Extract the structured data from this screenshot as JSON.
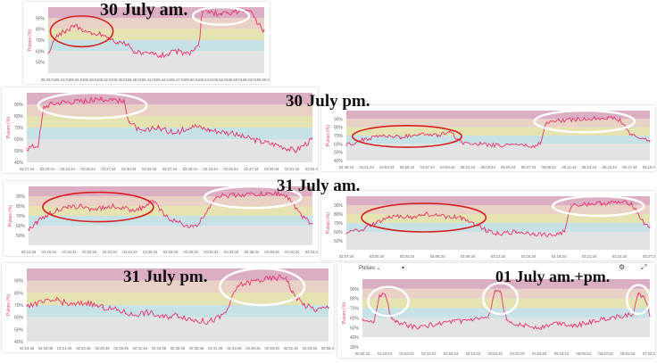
{
  "titles": {
    "p1": "30 July am.",
    "p2": "30 July pm.",
    "p4": "31 July am.",
    "p6": "31 July pm.",
    "p7": "01 July am.+pm."
  },
  "toolbar": {
    "series_select": "Pulses",
    "settings_icon": "gear-icon",
    "expand_icon": "expand-icon"
  },
  "bands": [
    {
      "from": 90,
      "to": 100,
      "color": "#dcaec4"
    },
    {
      "from": 80,
      "to": 90,
      "color": "#e9d1c5"
    },
    {
      "from": 70,
      "to": 80,
      "color": "#e6e3b2"
    },
    {
      "from": 60,
      "to": 70,
      "color": "#c6e2e6"
    },
    {
      "from": 40,
      "to": 60,
      "color": "#e3e3e3"
    }
  ],
  "chart_data": [
    {
      "id": "p1",
      "type": "line",
      "title": "30 July am.",
      "ylabel": "Pulses (%)",
      "ylim": [
        40,
        100
      ],
      "yticks": [
        "90%",
        "80%",
        "70%",
        "60%",
        "50%"
      ],
      "xticks": [
        "05:20:01",
        "05:23:01",
        "05:26:01",
        "05:29:01",
        "05:32:01",
        "05:35:01",
        "05:38:01",
        "05:41:01",
        "05:44:01",
        "05:47:01",
        "05:50:01",
        "05:53:01",
        "05:56:01",
        "05:59:01",
        "06:02:01",
        "06:05:01"
      ],
      "x": [
        0,
        0.04,
        0.08,
        0.12,
        0.16,
        0.2,
        0.24,
        0.28,
        0.32,
        0.36,
        0.4,
        0.44,
        0.48,
        0.52,
        0.56,
        0.6,
        0.64,
        0.68,
        0.7,
        0.71,
        0.74,
        0.8,
        0.86,
        0.9,
        0.92,
        0.94,
        0.96,
        1
      ],
      "y": [
        58,
        75,
        78,
        83,
        80,
        75,
        76,
        72,
        68,
        66,
        60,
        57,
        58,
        56,
        58,
        60,
        57,
        62,
        64,
        96,
        95,
        94,
        96,
        97,
        97,
        96,
        88,
        78
      ],
      "highlights": [
        {
          "shape": "ellipse",
          "color": "red",
          "x0": 0.01,
          "x1": 0.3,
          "y0": 64,
          "y1": 92
        },
        {
          "shape": "ellipse",
          "color": "white",
          "x0": 0.67,
          "x1": 0.93,
          "y0": 84,
          "y1": 102
        }
      ]
    },
    {
      "id": "p2",
      "type": "line",
      "title": "30 July pm.",
      "ylabel": "Pulses (%)",
      "ylim": [
        40,
        100
      ],
      "yticks": [
        "90%",
        "80%",
        "70%",
        "60%",
        "50%",
        "40%"
      ],
      "xticks": [
        "02:17:44",
        "02:20:44",
        "02:23:44",
        "02:25:44",
        "02:27:44",
        "02:30:44",
        "02:33:44",
        "02:37:44",
        "02:40:44",
        "02:43:44",
        "02:45:44",
        "02:47:44",
        "02:49:44",
        "02:51:44",
        "02:53:44"
      ],
      "x": [
        0,
        0.04,
        0.06,
        0.08,
        0.12,
        0.2,
        0.26,
        0.3,
        0.34,
        0.36,
        0.4,
        0.46,
        0.52,
        0.58,
        0.64,
        0.7,
        0.76,
        0.82,
        0.88,
        0.94,
        1
      ],
      "y": [
        52,
        55,
        88,
        90,
        92,
        93,
        94,
        95,
        92,
        75,
        66,
        70,
        65,
        72,
        68,
        66,
        62,
        58,
        55,
        50,
        60
      ],
      "highlights": [
        {
          "shape": "ellipse",
          "color": "white",
          "x0": 0.04,
          "x1": 0.42,
          "y0": 78,
          "y1": 100
        }
      ]
    },
    {
      "id": "p3",
      "type": "line",
      "title": "",
      "ylabel": "Pulses (%)",
      "ylim": [
        40,
        100
      ],
      "yticks": [
        "90%",
        "80%",
        "70%",
        "60%",
        "50%",
        "40%"
      ],
      "xticks": [
        "04:48:44",
        "04:51:44",
        "04:53:44",
        "04:55:44",
        "04:57:44",
        "04:59:44",
        "05:01:44",
        "05:03:44",
        "05:05:44",
        "05:07:44",
        "05:09:44",
        "05:11:44",
        "05:13:44",
        "05:15:44",
        "05:17:44",
        "05:19:44"
      ],
      "x": [
        0,
        0.06,
        0.12,
        0.18,
        0.24,
        0.3,
        0.34,
        0.38,
        0.44,
        0.5,
        0.56,
        0.62,
        0.64,
        0.66,
        0.7,
        0.76,
        0.82,
        0.86,
        0.9,
        0.94,
        1
      ],
      "y": [
        58,
        66,
        70,
        68,
        72,
        70,
        74,
        62,
        60,
        58,
        60,
        56,
        62,
        86,
        88,
        89,
        91,
        92,
        89,
        70,
        64
      ],
      "highlights": [
        {
          "shape": "ellipse",
          "color": "red",
          "x0": 0.02,
          "x1": 0.38,
          "y0": 56,
          "y1": 82
        },
        {
          "shape": "ellipse",
          "color": "white",
          "x0": 0.62,
          "x1": 0.95,
          "y0": 74,
          "y1": 100
        }
      ]
    },
    {
      "id": "p4",
      "type": "line",
      "title": "31 July am.",
      "ylabel": "Pulses (%)",
      "ylim": [
        40,
        100
      ],
      "yticks": [
        "90%",
        "80%",
        "70%",
        "60%",
        "50%"
      ],
      "xticks": [
        "04:14:34",
        "04:16:34",
        "04:18:34",
        "04:20:34",
        "04:22:34",
        "04:24:34",
        "04:26:34",
        "04:28:34",
        "04:30:34",
        "04:32:34",
        "04:34:34",
        "04:36:34",
        "04:38:34",
        "04:40:34",
        "04:42:34"
      ],
      "x": [
        0,
        0.03,
        0.06,
        0.1,
        0.14,
        0.18,
        0.22,
        0.26,
        0.3,
        0.36,
        0.4,
        0.44,
        0.48,
        0.52,
        0.56,
        0.58,
        0.6,
        0.66,
        0.72,
        0.78,
        0.84,
        0.88,
        0.92,
        0.96,
        1
      ],
      "y": [
        56,
        64,
        70,
        76,
        78,
        80,
        77,
        78,
        80,
        76,
        78,
        85,
        70,
        64,
        60,
        58,
        62,
        90,
        91,
        92,
        92,
        93,
        88,
        70,
        62
      ],
      "highlights": [
        {
          "shape": "ellipse",
          "color": "red",
          "x0": 0.05,
          "x1": 0.44,
          "y0": 64,
          "y1": 94
        },
        {
          "shape": "ellipse",
          "color": "white",
          "x0": 0.62,
          "x1": 0.96,
          "y0": 78,
          "y1": 102
        }
      ]
    },
    {
      "id": "p5",
      "type": "line",
      "title": "",
      "ylabel": "Pulses (%)",
      "ylim": [
        40,
        100
      ],
      "yticks": [
        "90%",
        "80%",
        "70%",
        "60%",
        "50%"
      ],
      "xticks": [
        "02:57:34",
        "03:00:34",
        "03:03:34",
        "03:06:34",
        "03:09:34",
        "03:12:34",
        "03:15:34",
        "03:18:34",
        "03:21:34",
        "03:24:34",
        "03:27:34"
      ],
      "x": [
        0,
        0.06,
        0.1,
        0.14,
        0.18,
        0.22,
        0.26,
        0.3,
        0.34,
        0.38,
        0.42,
        0.46,
        0.5,
        0.56,
        0.62,
        0.68,
        0.72,
        0.74,
        0.78,
        0.84,
        0.9,
        0.94,
        0.98,
        1
      ],
      "y": [
        58,
        64,
        70,
        76,
        78,
        76,
        80,
        78,
        77,
        76,
        70,
        62,
        58,
        60,
        58,
        56,
        60,
        90,
        91,
        92,
        93,
        92,
        70,
        66
      ],
      "highlights": [
        {
          "shape": "ellipse",
          "color": "red",
          "x0": 0.05,
          "x1": 0.46,
          "y0": 60,
          "y1": 92
        },
        {
          "shape": "ellipse",
          "color": "white",
          "x0": 0.68,
          "x1": 0.98,
          "y0": 78,
          "y1": 102
        }
      ]
    },
    {
      "id": "p6",
      "type": "line",
      "title": "31 July pm.",
      "ylabel": "Pulses (%)",
      "ylim": [
        40,
        100
      ],
      "yticks": [
        "90%",
        "80%",
        "70%",
        "60%",
        "50%",
        "40%"
      ],
      "xticks": [
        "02:16:46",
        "02:18:46",
        "02:21:46",
        "02:23:46",
        "02:26:46",
        "02:28:46",
        "02:31:46",
        "02:33:46",
        "02:36:46",
        "02:38:46",
        "02:41:46",
        "02:43:46",
        "02:46:46",
        "02:48:46",
        "02:51:46",
        "02:53:46",
        "02:56:46"
      ],
      "x": [
        0,
        0.05,
        0.1,
        0.15,
        0.2,
        0.25,
        0.3,
        0.35,
        0.4,
        0.45,
        0.5,
        0.55,
        0.6,
        0.64,
        0.66,
        0.7,
        0.76,
        0.82,
        0.86,
        0.88,
        0.92,
        0.96,
        1
      ],
      "y": [
        70,
        72,
        74,
        70,
        72,
        68,
        66,
        62,
        64,
        60,
        62,
        58,
        56,
        60,
        64,
        86,
        90,
        92,
        93,
        80,
        70,
        66,
        68
      ],
      "highlights": [
        {
          "shape": "ellipse",
          "color": "white",
          "x0": 0.64,
          "x1": 0.92,
          "y0": 70,
          "y1": 102
        }
      ]
    },
    {
      "id": "p7",
      "type": "line",
      "title": "01 July am.+pm.",
      "ylabel": "Pulses (%)",
      "ylim": [
        30,
        100
      ],
      "yticks": [
        "90%",
        "80%",
        "70%",
        "60%",
        "50%",
        "40%",
        "30%"
      ],
      "xticks": [
        "00:53:23",
        "01:23:23",
        "01:53:23",
        "02:23:23",
        "02:53:23",
        "03:23:23",
        "03:53:23",
        "04:23:23",
        "04:53:23",
        "05:23:23",
        "05:53:23",
        "06:23:23",
        "06:53:23",
        "07:23:23"
      ],
      "x": [
        0,
        0.04,
        0.06,
        0.08,
        0.1,
        0.12,
        0.16,
        0.2,
        0.26,
        0.32,
        0.38,
        0.44,
        0.46,
        0.48,
        0.5,
        0.56,
        0.62,
        0.68,
        0.74,
        0.8,
        0.86,
        0.9,
        0.94,
        0.96,
        0.98,
        1
      ],
      "y": [
        58,
        56,
        82,
        84,
        60,
        56,
        52,
        50,
        54,
        56,
        58,
        60,
        86,
        88,
        58,
        52,
        50,
        55,
        52,
        56,
        60,
        62,
        64,
        84,
        82,
        62
      ],
      "highlights": [
        {
          "shape": "ellipse",
          "color": "white",
          "x0": 0.02,
          "x1": 0.16,
          "y0": 62,
          "y1": 92
        },
        {
          "shape": "ellipse",
          "color": "white",
          "x0": 0.42,
          "x1": 0.54,
          "y0": 64,
          "y1": 96
        },
        {
          "shape": "ellipse",
          "color": "white",
          "x0": 0.92,
          "x1": 1.0,
          "y0": 64,
          "y1": 94
        }
      ]
    }
  ]
}
